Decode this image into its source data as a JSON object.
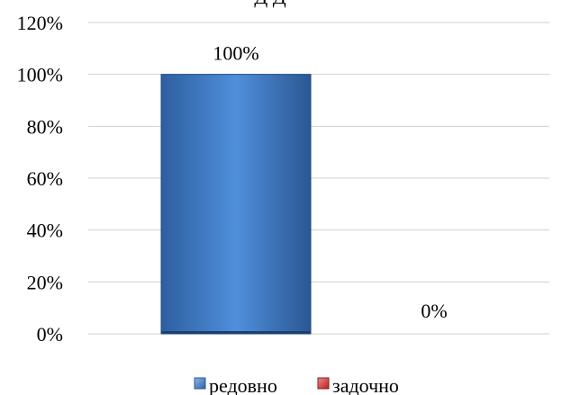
{
  "chart_data": {
    "type": "bar",
    "title_fragment": "Д Д",
    "categories": [
      "редовно",
      "задочно"
    ],
    "series": [
      {
        "name": "редовно",
        "value": 1.0,
        "value_label": "100%",
        "color": "#3a78c6"
      },
      {
        "name": "задочно",
        "value": 0.0,
        "value_label": "0%",
        "color": "#c0392b"
      }
    ],
    "yaxis": {
      "min": 0,
      "max": 1.2,
      "ticks": [
        "0%",
        "20%",
        "40%",
        "60%",
        "80%",
        "100%",
        "120%"
      ],
      "tick_values": [
        0,
        0.2,
        0.4,
        0.6,
        0.8,
        1.0,
        1.2
      ]
    },
    "grid": true,
    "legend_position": "bottom"
  }
}
